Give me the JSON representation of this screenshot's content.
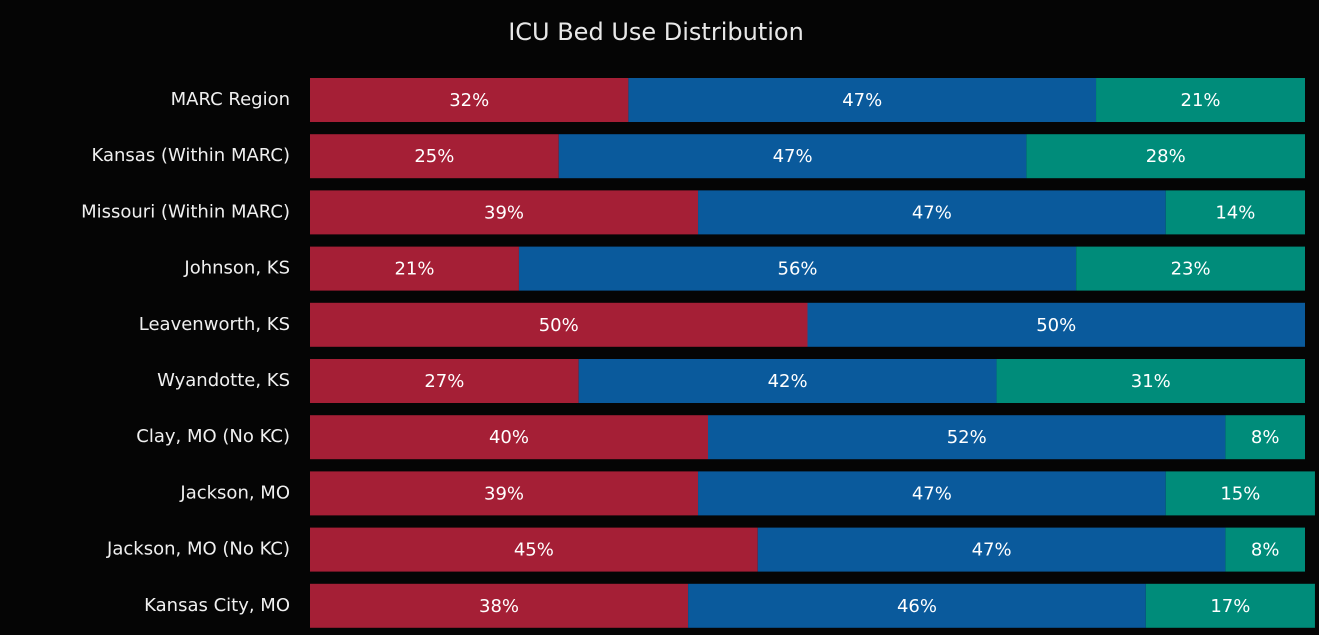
{
  "chart_data": {
    "type": "stacked-bar-horizontal",
    "title": "ICU Bed Use Distribution",
    "categories": [
      "MARC Region",
      "Kansas (Within MARC)",
      "Missouri (Within MARC)",
      "Johnson, KS",
      "Leavenworth, KS",
      "Wyandotte, KS",
      "Clay, MO (No KC)",
      "Jackson, MO",
      "Jackson, MO (No KC)",
      "Kansas City, MO"
    ],
    "xlim": [
      0,
      100
    ],
    "series": [
      {
        "color": "#a51f36",
        "values": [
          32,
          25,
          39,
          21,
          50,
          27,
          40,
          39,
          45,
          38
        ],
        "value_labels": [
          "32%",
          "25%",
          "39%",
          "21%",
          "50%",
          "27%",
          "40%",
          "39%",
          "45%",
          "38%"
        ]
      },
      {
        "color": "#0a5a9c",
        "values": [
          47,
          47,
          47,
          56,
          50,
          42,
          52,
          47,
          47,
          46
        ],
        "value_labels": [
          "47%",
          "47%",
          "47%",
          "56%",
          "50%",
          "42%",
          "52%",
          "47%",
          "47%",
          "46%"
        ]
      },
      {
        "color": "#008c7a",
        "values": [
          21,
          28,
          14,
          23,
          null,
          31,
          8,
          15,
          8,
          17
        ],
        "value_labels": [
          "21%",
          "28%",
          "14%",
          "23%",
          null,
          "31%",
          "8%",
          "15%",
          "8%",
          "17%"
        ]
      }
    ]
  }
}
